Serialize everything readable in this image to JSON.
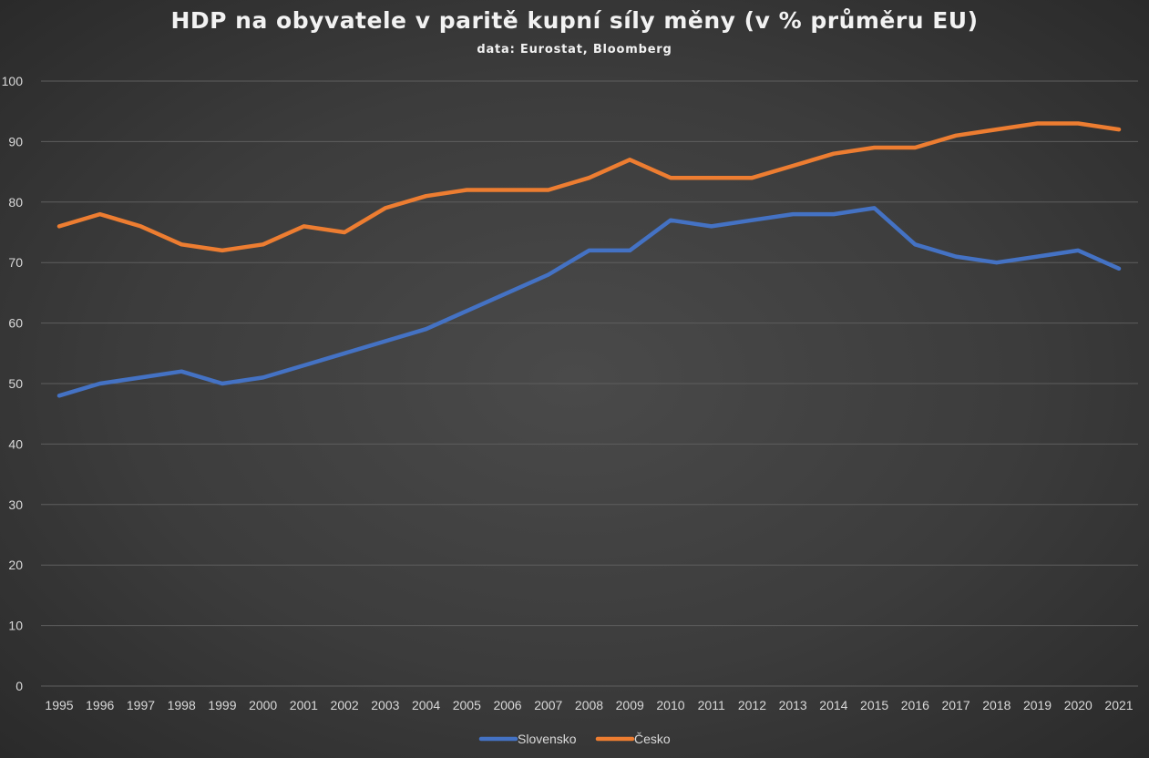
{
  "chart_data": {
    "type": "line",
    "title": "HDP na obyvatele v paritě kupní síly měny (v % průměru EU)",
    "subtitle": "data: Eurostat, Bloomberg",
    "xlabel": "",
    "ylabel": "",
    "ylim": [
      0,
      100
    ],
    "yticks": [
      0,
      10,
      20,
      30,
      40,
      50,
      60,
      70,
      80,
      90,
      100
    ],
    "grid": true,
    "legend_position": "bottom",
    "categories": [
      "1995",
      "1996",
      "1997",
      "1998",
      "1999",
      "2000",
      "2001",
      "2002",
      "2003",
      "2004",
      "2005",
      "2006",
      "2007",
      "2008",
      "2009",
      "2010",
      "2011",
      "2012",
      "2013",
      "2014",
      "2015",
      "2016",
      "2017",
      "2018",
      "2019",
      "2020",
      "2021"
    ],
    "series": [
      {
        "name": "Slovensko",
        "color": "#4472c4",
        "values": [
          48,
          50,
          51,
          52,
          50,
          51,
          53,
          55,
          57,
          59,
          62,
          65,
          68,
          72,
          72,
          77,
          76,
          77,
          78,
          78,
          79,
          73,
          71,
          70,
          71,
          72,
          69
        ]
      },
      {
        "name": "Česko",
        "color": "#ed7d31",
        "values": [
          76,
          78,
          76,
          73,
          72,
          73,
          76,
          75,
          79,
          81,
          82,
          82,
          82,
          84,
          87,
          84,
          84,
          84,
          86,
          88,
          89,
          89,
          91,
          92,
          93,
          93,
          92
        ]
      }
    ]
  }
}
